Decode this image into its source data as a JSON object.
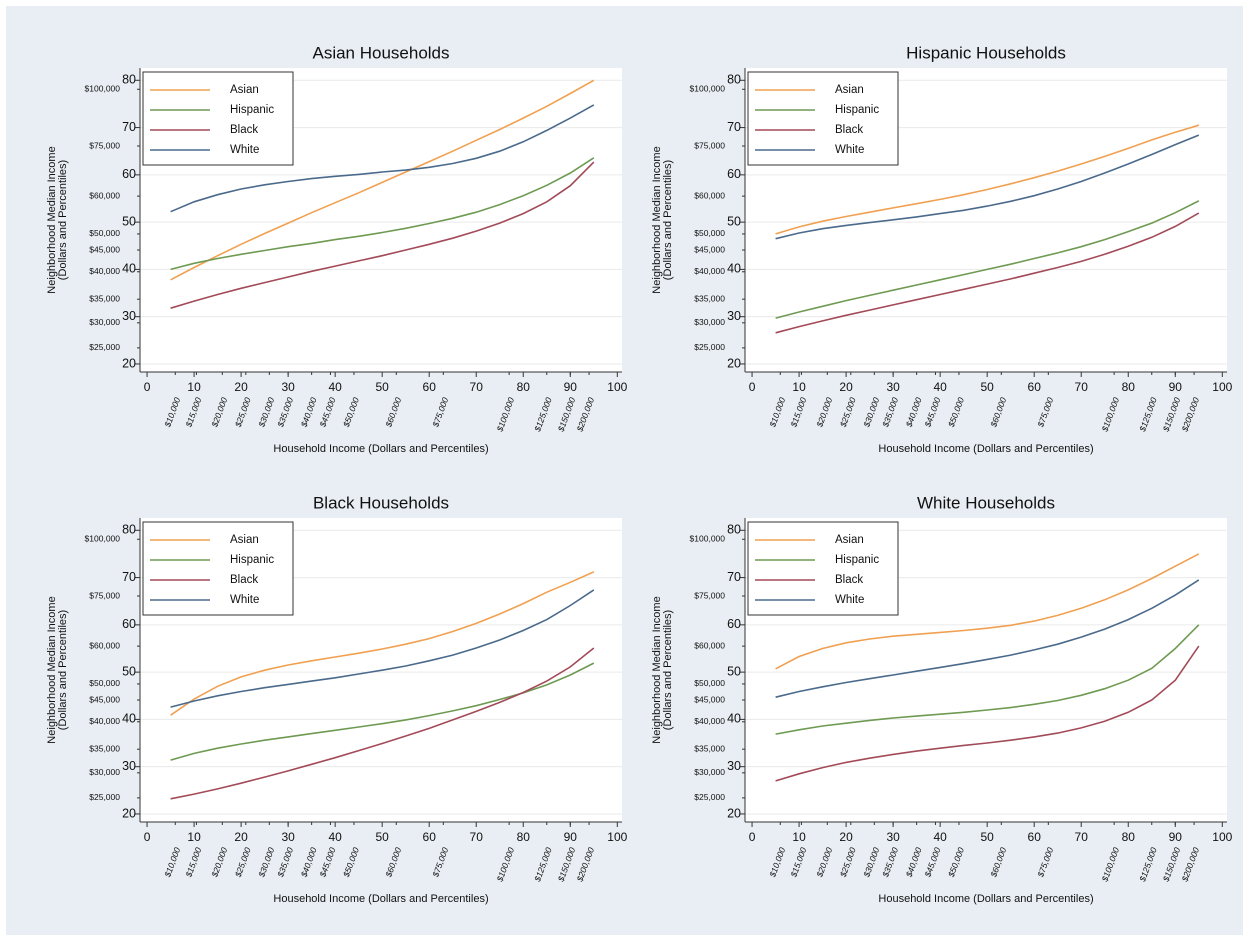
{
  "chart_data": [
    {
      "type": "line",
      "title": "Asian Households",
      "x_label": "Household Income (Dollars and Percentiles)",
      "y_label": [
        "Neighborhood Median Income",
        "(Dollars and Percentiles)"
      ],
      "x": [
        5,
        10,
        15,
        20,
        25,
        30,
        35,
        40,
        45,
        50,
        55,
        60,
        65,
        70,
        75,
        80,
        85,
        90,
        95
      ],
      "series": [
        {
          "name": "Asian",
          "color": "#f0a050",
          "values": [
            37.8,
            40.4,
            42.9,
            45.3,
            47.6,
            49.8,
            52.0,
            54.1,
            56.2,
            58.4,
            60.6,
            62.8,
            65.0,
            67.3,
            69.6,
            72.0,
            74.5,
            77.2,
            80.0
          ]
        },
        {
          "name": "Hispanic",
          "color": "#6e9a52",
          "values": [
            40.0,
            41.3,
            42.3,
            43.2,
            44.0,
            44.8,
            45.5,
            46.3,
            47.0,
            47.8,
            48.7,
            49.7,
            50.8,
            52.1,
            53.7,
            55.6,
            57.8,
            60.4,
            63.6
          ]
        },
        {
          "name": "Black",
          "color": "#a34a58",
          "values": [
            31.8,
            33.3,
            34.7,
            36.0,
            37.2,
            38.4,
            39.6,
            40.7,
            41.8,
            42.9,
            44.1,
            45.3,
            46.6,
            48.1,
            49.8,
            51.8,
            54.3,
            57.7,
            62.7
          ]
        },
        {
          "name": "White",
          "color": "#4a6a8c",
          "values": [
            52.2,
            54.3,
            55.8,
            57.0,
            57.9,
            58.6,
            59.2,
            59.7,
            60.1,
            60.6,
            61.0,
            61.6,
            62.4,
            63.5,
            65.0,
            67.0,
            69.4,
            72.0,
            74.8
          ]
        }
      ],
      "xlim": [
        -1.5,
        101
      ],
      "xticks": [
        0,
        10,
        20,
        30,
        40,
        50,
        60,
        70,
        80,
        90,
        100
      ],
      "ylim": [
        18.3,
        82.6
      ],
      "yticks": [
        20,
        30,
        40,
        50,
        60,
        70,
        80
      ],
      "x_dollar_ticks": [
        {
          "value": 6,
          "label": "$10,000"
        },
        {
          "value": 10.5,
          "label": "$15,000"
        },
        {
          "value": 16,
          "label": "$20,000"
        },
        {
          "value": 21,
          "label": "$25,000"
        },
        {
          "value": 26,
          "label": "$30,000"
        },
        {
          "value": 30,
          "label": "$35,000"
        },
        {
          "value": 35,
          "label": "$40,000"
        },
        {
          "value": 39,
          "label": "$45,000"
        },
        {
          "value": 44,
          "label": "$50,000"
        },
        {
          "value": 53,
          "label": "$60,000"
        },
        {
          "value": 63,
          "label": "$75,000"
        },
        {
          "value": 77,
          "label": "$100,000"
        },
        {
          "value": 85,
          "label": "$125,000"
        },
        {
          "value": 90,
          "label": "$150,000"
        },
        {
          "value": 94,
          "label": "$200,000"
        }
      ],
      "y_dollar_ticks": [
        {
          "value": 78.1,
          "label": "$100,000"
        },
        {
          "value": 66.1,
          "label": "$75,000"
        },
        {
          "value": 55.5,
          "label": "$60,000"
        },
        {
          "value": 47.5,
          "label": "$50,000"
        },
        {
          "value": 44.1,
          "label": "$45,000"
        },
        {
          "value": 39.5,
          "label": "$40,000"
        },
        {
          "value": 33.7,
          "label": "$35,000"
        },
        {
          "value": 28.7,
          "label": "$30,000"
        },
        {
          "value": 23.4,
          "label": "$25,000"
        }
      ],
      "grid": true,
      "legend": "top-left"
    },
    {
      "type": "line",
      "title": "Hispanic Households",
      "x_label": "Household Income (Dollars and Percentiles)",
      "y_label": [
        "Neighborhood Median Income",
        "(Dollars and Percentiles)"
      ],
      "x": [
        5,
        10,
        15,
        20,
        25,
        30,
        35,
        40,
        45,
        50,
        55,
        60,
        65,
        70,
        75,
        80,
        85,
        90,
        95
      ],
      "series": [
        {
          "name": "Asian",
          "color": "#f0a050",
          "values": [
            47.5,
            49.0,
            50.2,
            51.2,
            52.1,
            53.0,
            53.9,
            54.8,
            55.8,
            56.9,
            58.1,
            59.4,
            60.8,
            62.3,
            63.9,
            65.6,
            67.4,
            69.0,
            70.5
          ]
        },
        {
          "name": "Hispanic",
          "color": "#6e9a52",
          "values": [
            29.7,
            31.0,
            32.2,
            33.4,
            34.5,
            35.6,
            36.7,
            37.8,
            38.9,
            40.0,
            41.1,
            42.3,
            43.5,
            44.8,
            46.3,
            48.0,
            49.8,
            52.0,
            54.5
          ]
        },
        {
          "name": "Black",
          "color": "#a34a58",
          "values": [
            26.6,
            27.9,
            29.1,
            30.3,
            31.4,
            32.5,
            33.6,
            34.7,
            35.8,
            36.9,
            38.0,
            39.2,
            40.4,
            41.7,
            43.2,
            44.9,
            46.8,
            49.1,
            51.9
          ]
        },
        {
          "name": "White",
          "color": "#4a6a8c",
          "values": [
            46.5,
            47.7,
            48.6,
            49.3,
            49.9,
            50.5,
            51.1,
            51.8,
            52.5,
            53.4,
            54.4,
            55.6,
            57.0,
            58.6,
            60.4,
            62.3,
            64.3,
            66.4,
            68.4
          ]
        }
      ],
      "xlim": [
        -1.5,
        101
      ],
      "xticks": [
        0,
        10,
        20,
        30,
        40,
        50,
        60,
        70,
        80,
        90,
        100
      ],
      "ylim": [
        18.3,
        82.6
      ],
      "yticks": [
        20,
        30,
        40,
        50,
        60,
        70,
        80
      ],
      "x_dollar_ticks": [
        {
          "value": 6,
          "label": "$10,000"
        },
        {
          "value": 10.5,
          "label": "$15,000"
        },
        {
          "value": 16,
          "label": "$20,000"
        },
        {
          "value": 21,
          "label": "$25,000"
        },
        {
          "value": 26,
          "label": "$30,000"
        },
        {
          "value": 30,
          "label": "$35,000"
        },
        {
          "value": 35,
          "label": "$40,000"
        },
        {
          "value": 39,
          "label": "$45,000"
        },
        {
          "value": 44,
          "label": "$50,000"
        },
        {
          "value": 53,
          "label": "$60,000"
        },
        {
          "value": 63,
          "label": "$75,000"
        },
        {
          "value": 77,
          "label": "$100,000"
        },
        {
          "value": 85,
          "label": "$125,000"
        },
        {
          "value": 90,
          "label": "$150,000"
        },
        {
          "value": 94,
          "label": "$200,000"
        }
      ],
      "y_dollar_ticks": [
        {
          "value": 78.1,
          "label": "$100,000"
        },
        {
          "value": 66.1,
          "label": "$75,000"
        },
        {
          "value": 55.5,
          "label": "$60,000"
        },
        {
          "value": 47.5,
          "label": "$50,000"
        },
        {
          "value": 44.1,
          "label": "$45,000"
        },
        {
          "value": 39.5,
          "label": "$40,000"
        },
        {
          "value": 33.7,
          "label": "$35,000"
        },
        {
          "value": 28.7,
          "label": "$30,000"
        },
        {
          "value": 23.4,
          "label": "$25,000"
        }
      ],
      "grid": true,
      "legend": "top-left"
    },
    {
      "type": "line",
      "title": "Black Households",
      "x_label": "Household Income (Dollars and Percentiles)",
      "y_label": [
        "Neighborhood Median Income",
        "(Dollars and Percentiles)"
      ],
      "x": [
        5,
        10,
        15,
        20,
        25,
        30,
        35,
        40,
        45,
        50,
        55,
        60,
        65,
        70,
        75,
        80,
        85,
        90,
        95
      ],
      "series": [
        {
          "name": "Asian",
          "color": "#f0a050",
          "values": [
            40.9,
            44.3,
            47.0,
            49.0,
            50.4,
            51.5,
            52.4,
            53.2,
            54.0,
            54.9,
            55.9,
            57.1,
            58.6,
            60.3,
            62.3,
            64.5,
            66.9,
            69.0,
            71.2
          ]
        },
        {
          "name": "Hispanic",
          "color": "#6e9a52",
          "values": [
            31.4,
            32.8,
            33.9,
            34.8,
            35.6,
            36.3,
            37.0,
            37.7,
            38.4,
            39.1,
            39.9,
            40.8,
            41.8,
            42.9,
            44.2,
            45.6,
            47.3,
            49.4,
            51.9
          ]
        },
        {
          "name": "Black",
          "color": "#a34a58",
          "values": [
            23.2,
            24.2,
            25.3,
            26.5,
            27.8,
            29.1,
            30.5,
            31.9,
            33.4,
            34.9,
            36.5,
            38.1,
            39.9,
            41.7,
            43.6,
            45.7,
            48.1,
            51.1,
            55.1
          ]
        },
        {
          "name": "White",
          "color": "#4a6a8c",
          "values": [
            42.6,
            43.9,
            45.0,
            45.9,
            46.7,
            47.4,
            48.1,
            48.8,
            49.6,
            50.4,
            51.3,
            52.4,
            53.6,
            55.1,
            56.8,
            58.8,
            61.1,
            64.1,
            67.4
          ]
        }
      ],
      "xlim": [
        -1.5,
        101
      ],
      "xticks": [
        0,
        10,
        20,
        30,
        40,
        50,
        60,
        70,
        80,
        90,
        100
      ],
      "ylim": [
        18.3,
        82.6
      ],
      "yticks": [
        20,
        30,
        40,
        50,
        60,
        70,
        80
      ],
      "x_dollar_ticks": [
        {
          "value": 6,
          "label": "$10,000"
        },
        {
          "value": 10.5,
          "label": "$15,000"
        },
        {
          "value": 16,
          "label": "$20,000"
        },
        {
          "value": 21,
          "label": "$25,000"
        },
        {
          "value": 26,
          "label": "$30,000"
        },
        {
          "value": 30,
          "label": "$35,000"
        },
        {
          "value": 35,
          "label": "$40,000"
        },
        {
          "value": 39,
          "label": "$45,000"
        },
        {
          "value": 44,
          "label": "$50,000"
        },
        {
          "value": 53,
          "label": "$60,000"
        },
        {
          "value": 63,
          "label": "$75,000"
        },
        {
          "value": 77,
          "label": "$100,000"
        },
        {
          "value": 85,
          "label": "$125,000"
        },
        {
          "value": 90,
          "label": "$150,000"
        },
        {
          "value": 94,
          "label": "$200,000"
        }
      ],
      "y_dollar_ticks": [
        {
          "value": 78.1,
          "label": "$100,000"
        },
        {
          "value": 66.1,
          "label": "$75,000"
        },
        {
          "value": 55.5,
          "label": "$60,000"
        },
        {
          "value": 47.5,
          "label": "$50,000"
        },
        {
          "value": 44.1,
          "label": "$45,000"
        },
        {
          "value": 39.5,
          "label": "$40,000"
        },
        {
          "value": 33.7,
          "label": "$35,000"
        },
        {
          "value": 28.7,
          "label": "$30,000"
        },
        {
          "value": 23.4,
          "label": "$25,000"
        }
      ],
      "grid": true,
      "legend": "top-left"
    },
    {
      "type": "line",
      "title": "White Households",
      "x_label": "Household Income (Dollars and Percentiles)",
      "y_label": [
        "Neighborhood Median Income",
        "(Dollars and Percentiles)"
      ],
      "x": [
        5,
        10,
        15,
        20,
        25,
        30,
        35,
        40,
        45,
        50,
        55,
        60,
        65,
        70,
        75,
        80,
        85,
        90,
        95
      ],
      "series": [
        {
          "name": "Asian",
          "color": "#f0a050",
          "values": [
            50.7,
            53.3,
            55.0,
            56.2,
            57.0,
            57.6,
            58.0,
            58.4,
            58.8,
            59.3,
            59.9,
            60.8,
            62.0,
            63.5,
            65.3,
            67.4,
            69.8,
            72.4,
            75.0
          ]
        },
        {
          "name": "Hispanic",
          "color": "#6e9a52",
          "values": [
            36.9,
            37.8,
            38.6,
            39.2,
            39.8,
            40.3,
            40.7,
            41.1,
            41.5,
            42.0,
            42.5,
            43.2,
            44.0,
            45.1,
            46.5,
            48.3,
            50.8,
            55.0,
            60.0
          ]
        },
        {
          "name": "Black",
          "color": "#a34a58",
          "values": [
            27.0,
            28.5,
            29.8,
            30.9,
            31.8,
            32.6,
            33.3,
            33.9,
            34.5,
            35.0,
            35.6,
            36.3,
            37.1,
            38.2,
            39.6,
            41.5,
            44.1,
            48.3,
            55.5
          ]
        },
        {
          "name": "White",
          "color": "#4a6a8c",
          "values": [
            44.7,
            45.9,
            46.9,
            47.8,
            48.6,
            49.4,
            50.2,
            51.0,
            51.8,
            52.7,
            53.6,
            54.7,
            55.9,
            57.4,
            59.1,
            61.1,
            63.5,
            66.3,
            69.5
          ]
        }
      ],
      "xlim": [
        -1.5,
        101
      ],
      "xticks": [
        0,
        10,
        20,
        30,
        40,
        50,
        60,
        70,
        80,
        90,
        100
      ],
      "ylim": [
        18.3,
        82.6
      ],
      "yticks": [
        20,
        30,
        40,
        50,
        60,
        70,
        80
      ],
      "x_dollar_ticks": [
        {
          "value": 6,
          "label": "$10,000"
        },
        {
          "value": 10.5,
          "label": "$15,000"
        },
        {
          "value": 16,
          "label": "$20,000"
        },
        {
          "value": 21,
          "label": "$25,000"
        },
        {
          "value": 26,
          "label": "$30,000"
        },
        {
          "value": 30,
          "label": "$35,000"
        },
        {
          "value": 35,
          "label": "$40,000"
        },
        {
          "value": 39,
          "label": "$45,000"
        },
        {
          "value": 44,
          "label": "$50,000"
        },
        {
          "value": 53,
          "label": "$60,000"
        },
        {
          "value": 63,
          "label": "$75,000"
        },
        {
          "value": 77,
          "label": "$100,000"
        },
        {
          "value": 85,
          "label": "$125,000"
        },
        {
          "value": 90,
          "label": "$150,000"
        },
        {
          "value": 94,
          "label": "$200,000"
        }
      ],
      "y_dollar_ticks": [
        {
          "value": 78.1,
          "label": "$100,000"
        },
        {
          "value": 66.1,
          "label": "$75,000"
        },
        {
          "value": 55.5,
          "label": "$60,000"
        },
        {
          "value": 47.5,
          "label": "$50,000"
        },
        {
          "value": 44.1,
          "label": "$45,000"
        },
        {
          "value": 39.5,
          "label": "$40,000"
        },
        {
          "value": 33.7,
          "label": "$35,000"
        },
        {
          "value": 28.7,
          "label": "$30,000"
        },
        {
          "value": 23.4,
          "label": "$25,000"
        }
      ],
      "grid": true,
      "legend": "top-left"
    }
  ]
}
